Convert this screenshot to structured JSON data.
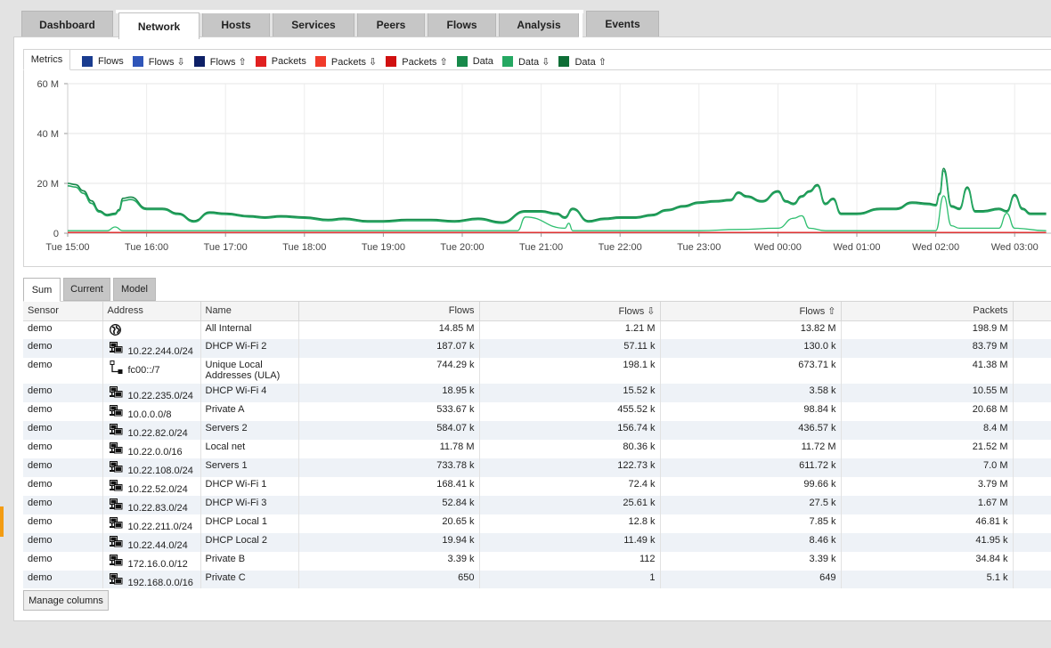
{
  "nav": {
    "tabs": [
      {
        "label": "Dashboard",
        "active": false
      },
      {
        "label": "Network",
        "active": true
      },
      {
        "label": "Hosts",
        "active": false
      },
      {
        "label": "Services",
        "active": false
      },
      {
        "label": "Peers",
        "active": false
      },
      {
        "label": "Flows",
        "active": false
      },
      {
        "label": "Analysis",
        "active": false
      },
      {
        "label": "Events",
        "active": false
      }
    ]
  },
  "chart_panel": {
    "tab_label": "Metrics",
    "legend": [
      {
        "label": "Flows",
        "color": "#1a3c8f"
      },
      {
        "label": "Flows ⇩",
        "color": "#2f55b8"
      },
      {
        "label": "Flows ⇧",
        "color": "#0d1f66"
      },
      {
        "label": "Packets",
        "color": "#e02020"
      },
      {
        "label": "Packets ⇩",
        "color": "#f03a2a"
      },
      {
        "label": "Packets ⇧",
        "color": "#d01010"
      },
      {
        "label": "Data",
        "color": "#17894a"
      },
      {
        "label": "Data ⇩",
        "color": "#25a862"
      },
      {
        "label": "Data ⇧",
        "color": "#0e6e36"
      }
    ]
  },
  "chart_data": {
    "type": "line",
    "y_ticks": [
      "60 M",
      "40 M",
      "20 M",
      "0"
    ],
    "ylim": [
      0,
      60
    ],
    "x_ticks": [
      "Tue 15:00",
      "Tue 16:00",
      "Tue 17:00",
      "Tue 18:00",
      "Tue 19:00",
      "Tue 20:00",
      "Tue 21:00",
      "Tue 22:00",
      "Tue 23:00",
      "Wed 00:00",
      "Wed 01:00",
      "Wed 02:00",
      "Wed 03:00"
    ],
    "x_hours": [
      0,
      12.4
    ],
    "grid": true,
    "series": [
      {
        "color": "#17894a",
        "x": [
          0,
          0.1,
          0.2,
          0.3,
          0.4,
          0.5,
          0.6,
          0.65,
          0.7,
          0.8,
          1.0,
          1.2,
          1.4,
          1.6,
          1.8,
          2.0,
          2.3,
          2.5,
          2.7,
          3.0,
          3.3,
          3.5,
          3.8,
          4.0,
          4.3,
          4.6,
          4.9,
          5.2,
          5.5,
          5.8,
          6.0,
          6.2,
          6.3,
          6.4,
          6.6,
          6.8,
          7.0,
          7.2,
          7.4,
          7.6,
          7.8,
          8.0,
          8.2,
          8.4,
          8.5,
          8.6,
          8.8,
          9.0,
          9.1,
          9.2,
          9.3,
          9.4,
          9.5,
          9.6,
          9.7,
          9.8,
          10.0,
          10.3,
          10.5,
          10.7,
          10.9,
          11.0,
          11.05,
          11.1,
          11.2,
          11.3,
          11.4,
          11.5,
          11.6,
          11.8,
          11.9,
          12.0,
          12.1,
          12.2,
          12.4
        ],
        "values": [
          20,
          19.5,
          17,
          13,
          9,
          7.5,
          8,
          9.5,
          14,
          14.5,
          10,
          10,
          8,
          5,
          8.5,
          8,
          7,
          6.5,
          7,
          6.5,
          5.5,
          6,
          5,
          5,
          5.5,
          5.5,
          5,
          6,
          4.5,
          9,
          9,
          8,
          6.5,
          10,
          5,
          6,
          6.5,
          6.5,
          7.5,
          9.5,
          11,
          12.5,
          13,
          13.5,
          16.5,
          15,
          13,
          17,
          13,
          12,
          15,
          17,
          19.5,
          12,
          14,
          8,
          8,
          10,
          10,
          12.5,
          12,
          11.5,
          16,
          26,
          11,
          10,
          18.5,
          9,
          9,
          10,
          9,
          15.5,
          10,
          8,
          8
        ]
      },
      {
        "color": "#25a862",
        "x": [
          0,
          0.1,
          0.2,
          0.3,
          0.4,
          0.5,
          0.6,
          0.65,
          0.7,
          0.8,
          1.0,
          1.2,
          1.4,
          1.6,
          1.8,
          2.0,
          2.3,
          2.5,
          2.7,
          3.0,
          3.3,
          3.5,
          3.8,
          4.0,
          4.3,
          4.6,
          4.9,
          5.2,
          5.5,
          5.8,
          6.0,
          6.2,
          6.3,
          6.4,
          6.6,
          6.8,
          7.0,
          7.2,
          7.4,
          7.6,
          7.8,
          8.0,
          8.2,
          8.4,
          8.5,
          8.6,
          8.8,
          9.0,
          9.1,
          9.2,
          9.3,
          9.4,
          9.5,
          9.6,
          9.7,
          9.8,
          10.0,
          10.3,
          10.5,
          10.7,
          10.9,
          11.0,
          11.05,
          11.1,
          11.2,
          11.3,
          11.4,
          11.5,
          11.6,
          11.8,
          11.9,
          12.0,
          12.1,
          12.2,
          12.4
        ],
        "values": [
          19,
          18.5,
          16,
          12,
          8.5,
          7,
          7.5,
          9,
          13,
          13.5,
          9.5,
          9.5,
          7.5,
          4.5,
          8,
          7.5,
          6.5,
          6,
          6.5,
          6,
          5,
          5.5,
          4.5,
          4.5,
          5,
          5,
          4.5,
          5.5,
          4,
          8.5,
          8.5,
          7.5,
          6,
          9.5,
          4.5,
          5.5,
          6,
          6,
          7,
          9,
          10.5,
          12,
          12.5,
          13,
          16,
          14.5,
          12.5,
          16.5,
          12.5,
          11.5,
          14.5,
          16.5,
          19,
          11.5,
          13.5,
          7.5,
          7.5,
          9.5,
          9.5,
          12,
          11.5,
          11,
          15.5,
          25,
          10.5,
          9.5,
          18,
          8.5,
          8.5,
          9.5,
          8.5,
          15,
          9.5,
          7.5,
          7.5
        ]
      },
      {
        "color": "#2fbf70",
        "x": [
          0,
          0.5,
          0.6,
          0.7,
          1.0,
          2.0,
          3.0,
          4.0,
          5.0,
          5.7,
          5.8,
          6.3,
          6.35,
          6.4,
          7.0,
          8.0,
          8.5,
          9.0,
          9.2,
          9.3,
          9.4,
          9.6,
          10.0,
          10.5,
          11.0,
          11.1,
          11.2,
          11.3,
          11.8,
          11.9,
          12.0,
          12.4
        ],
        "values": [
          1,
          1,
          2.5,
          1,
          1,
          1,
          1,
          1,
          1,
          1,
          6.5,
          2,
          4,
          1,
          1,
          1,
          1.5,
          2,
          6,
          7,
          2,
          1,
          1,
          1,
          1,
          15,
          3,
          2,
          2,
          8,
          2,
          1
        ]
      },
      {
        "color": "#e02020",
        "x": [
          0,
          12.4
        ],
        "values": [
          0.3,
          0.3
        ]
      }
    ]
  },
  "subtabs": [
    {
      "label": "Sum",
      "active": true
    },
    {
      "label": "Current",
      "active": false
    },
    {
      "label": "Model",
      "active": false
    }
  ],
  "table": {
    "headers": [
      "Sensor",
      "Address",
      "Name",
      "Flows",
      "Flows ⇩",
      "Flows ⇧",
      "Packets"
    ],
    "rows": [
      {
        "sensor": "demo",
        "icon": "globe-icon",
        "address": "",
        "name": "All Internal",
        "flows": "14.85 M",
        "flows_in": "1.21 M",
        "flows_out": "13.82 M",
        "packets": "198.9 M"
      },
      {
        "sensor": "demo",
        "icon": "network-icon",
        "address": "10.22.244.0/24",
        "name": "DHCP Wi-Fi 2",
        "flows": "187.07 k",
        "flows_in": "57.11 k",
        "flows_out": "130.0 k",
        "packets": "83.79 M"
      },
      {
        "sensor": "demo",
        "icon": "ipv6-network-icon",
        "address": "fc00::/7",
        "name": "Unique Local Addresses (ULA)",
        "flows": "744.29 k",
        "flows_in": "198.1 k",
        "flows_out": "673.71 k",
        "packets": "41.38 M"
      },
      {
        "sensor": "demo",
        "icon": "network-icon",
        "address": "10.22.235.0/24",
        "name": "DHCP Wi-Fi 4",
        "flows": "18.95 k",
        "flows_in": "15.52 k",
        "flows_out": "3.58 k",
        "packets": "10.55 M"
      },
      {
        "sensor": "demo",
        "icon": "network-icon",
        "address": "10.0.0.0/8",
        "name": "Private A",
        "flows": "533.67 k",
        "flows_in": "455.52 k",
        "flows_out": "98.84 k",
        "packets": "20.68 M"
      },
      {
        "sensor": "demo",
        "icon": "network-icon",
        "address": "10.22.82.0/24",
        "name": "Servers 2",
        "flows": "584.07 k",
        "flows_in": "156.74 k",
        "flows_out": "436.57 k",
        "packets": "8.4 M"
      },
      {
        "sensor": "demo",
        "icon": "network-icon",
        "address": "10.22.0.0/16",
        "name": "Local net",
        "flows": "11.78 M",
        "flows_in": "80.36 k",
        "flows_out": "11.72 M",
        "packets": "21.52 M"
      },
      {
        "sensor": "demo",
        "icon": "network-icon",
        "address": "10.22.108.0/24",
        "name": "Servers 1",
        "flows": "733.78 k",
        "flows_in": "122.73 k",
        "flows_out": "611.72 k",
        "packets": "7.0 M"
      },
      {
        "sensor": "demo",
        "icon": "network-icon",
        "address": "10.22.52.0/24",
        "name": "DHCP Wi-Fi 1",
        "flows": "168.41 k",
        "flows_in": "72.4 k",
        "flows_out": "99.66 k",
        "packets": "3.79 M"
      },
      {
        "sensor": "demo",
        "icon": "network-icon",
        "address": "10.22.83.0/24",
        "name": "DHCP Wi-Fi 3",
        "flows": "52.84 k",
        "flows_in": "25.61 k",
        "flows_out": "27.5 k",
        "packets": "1.67 M"
      },
      {
        "sensor": "demo",
        "icon": "network-icon",
        "address": "10.22.211.0/24",
        "name": "DHCP Local 1",
        "flows": "20.65 k",
        "flows_in": "12.8 k",
        "flows_out": "7.85 k",
        "packets": "46.81 k"
      },
      {
        "sensor": "demo",
        "icon": "network-icon",
        "address": "10.22.44.0/24",
        "name": "DHCP Local 2",
        "flows": "19.94 k",
        "flows_in": "11.49 k",
        "flows_out": "8.46 k",
        "packets": "41.95 k"
      },
      {
        "sensor": "demo",
        "icon": "network-icon",
        "address": "172.16.0.0/12",
        "name": "Private B",
        "flows": "3.39 k",
        "flows_in": "112",
        "flows_out": "3.39 k",
        "packets": "34.84 k"
      },
      {
        "sensor": "demo",
        "icon": "network-icon",
        "address": "192.168.0.0/16",
        "name": "Private C",
        "flows": "650",
        "flows_in": "1",
        "flows_out": "649",
        "packets": "5.1 k"
      }
    ]
  },
  "footer": {
    "manage_columns_label": "Manage columns"
  }
}
